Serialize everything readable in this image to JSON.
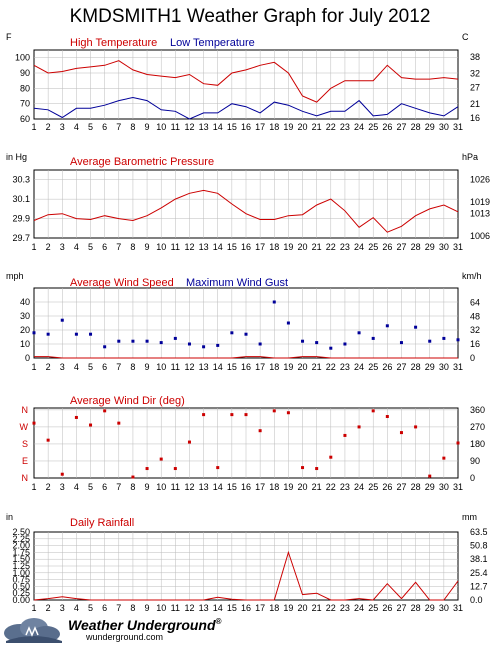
{
  "page": {
    "title": "KMDSMITH1 Weather Graph for July 2012"
  },
  "logo": {
    "name": "Weather Underground",
    "registered": "®",
    "url_text": "wunderground.com",
    "icon": "cloud-logo-icon"
  },
  "colors": {
    "primary": "#cc0000",
    "secondary": "#000099",
    "grid": "#bbbbbb"
  },
  "chart_data": [
    {
      "type": "line",
      "title": "",
      "left_unit": "F",
      "right_unit": "C",
      "x": [
        1,
        2,
        3,
        4,
        5,
        6,
        7,
        8,
        9,
        10,
        11,
        12,
        13,
        14,
        15,
        16,
        17,
        18,
        19,
        20,
        21,
        22,
        23,
        24,
        25,
        26,
        27,
        28,
        29,
        30,
        31
      ],
      "ylim": [
        60,
        105
      ],
      "y_ticks": [
        60,
        70,
        80,
        90,
        100
      ],
      "right_ticks": [
        {
          "value": 60.8,
          "label": "16"
        },
        {
          "value": 69.8,
          "label": "21"
        },
        {
          "value": 80.6,
          "label": "27"
        },
        {
          "value": 89.6,
          "label": "32"
        },
        {
          "value": 100.4,
          "label": "38"
        }
      ],
      "series": [
        {
          "name": "High Temperature",
          "values": [
            95,
            90,
            91,
            93,
            94,
            95,
            98,
            92,
            89,
            88,
            87,
            89,
            83,
            82,
            90,
            92,
            95,
            97,
            90,
            75,
            71,
            80,
            85,
            85,
            85,
            95,
            87,
            86,
            86,
            87,
            86
          ]
        },
        {
          "name": "Low Temperature",
          "values": [
            67,
            66,
            61,
            67,
            67,
            69,
            72,
            74,
            72,
            66,
            65,
            60,
            64,
            64,
            70,
            68,
            64,
            71,
            69,
            65,
            62,
            65,
            65,
            72,
            62,
            63,
            70,
            67,
            64,
            62,
            68
          ]
        }
      ]
    },
    {
      "type": "line",
      "title": "Average Barometric Pressure",
      "left_unit": "in Hg",
      "right_unit": "hPa",
      "x": [
        1,
        2,
        3,
        4,
        5,
        6,
        7,
        8,
        9,
        10,
        11,
        12,
        13,
        14,
        15,
        16,
        17,
        18,
        19,
        20,
        21,
        22,
        23,
        24,
        25,
        26,
        27,
        28,
        29,
        30,
        31
      ],
      "ylim": [
        29.7,
        30.4
      ],
      "y_ticks": [
        29.7,
        29.9,
        30.1,
        30.3
      ],
      "right_ticks": [
        {
          "value": 29.72,
          "label": "1006"
        },
        {
          "value": 29.95,
          "label": "1013"
        },
        {
          "value": 30.07,
          "label": "1019"
        },
        {
          "value": 30.3,
          "label": "1026"
        }
      ],
      "series": [
        {
          "name": "Average Barometric Pressure",
          "values": [
            29.88,
            29.94,
            29.95,
            29.9,
            29.89,
            29.93,
            29.9,
            29.88,
            29.93,
            30.01,
            30.1,
            30.16,
            30.19,
            30.16,
            30.05,
            29.95,
            29.89,
            29.89,
            29.93,
            29.94,
            30.04,
            30.1,
            29.98,
            29.81,
            29.91,
            29.76,
            29.82,
            29.93,
            30.0,
            30.04,
            29.97
          ]
        }
      ]
    },
    {
      "type": "scatter",
      "title": "",
      "left_unit": "mph",
      "right_unit": "km/h",
      "x": [
        1,
        2,
        3,
        4,
        5,
        6,
        7,
        8,
        9,
        10,
        11,
        12,
        13,
        14,
        15,
        16,
        17,
        18,
        19,
        20,
        21,
        22,
        23,
        24,
        25,
        26,
        27,
        28,
        29,
        30,
        31
      ],
      "ylim": [
        0,
        50
      ],
      "y_ticks": [
        0,
        10,
        20,
        30,
        40
      ],
      "right_ticks": [
        {
          "value": 0,
          "label": "0"
        },
        {
          "value": 9.9,
          "label": "16"
        },
        {
          "value": 19.9,
          "label": "32"
        },
        {
          "value": 29.8,
          "label": "48"
        },
        {
          "value": 39.8,
          "label": "64"
        }
      ],
      "series": [
        {
          "name": "Average Wind Speed",
          "values": [
            1,
            1,
            0,
            0,
            0,
            0,
            0,
            0,
            0,
            0,
            0,
            0,
            0,
            0,
            0,
            1,
            1,
            0,
            0,
            1,
            1,
            0,
            0,
            0,
            0,
            0,
            0,
            0,
            0,
            0,
            0
          ]
        },
        {
          "name": "Maximum Wind Gust",
          "values": [
            18,
            17,
            27,
            17,
            17,
            8,
            12,
            12,
            12,
            11,
            14,
            10,
            8,
            9,
            18,
            17,
            10,
            40,
            25,
            12,
            11,
            7,
            10,
            18,
            14,
            23,
            11,
            22,
            12,
            14,
            13
          ]
        }
      ]
    },
    {
      "type": "scatter",
      "title": "Average Wind Dir (deg)",
      "left_unit": "",
      "right_unit": "",
      "x": [
        1,
        2,
        3,
        4,
        5,
        6,
        7,
        8,
        9,
        10,
        11,
        12,
        13,
        14,
        15,
        16,
        17,
        18,
        19,
        20,
        21,
        22,
        23,
        24,
        25,
        26,
        27,
        28,
        29,
        30,
        31
      ],
      "ylim": [
        0,
        370
      ],
      "y_ticks": [
        0,
        90,
        180,
        270,
        360
      ],
      "left_ticks": [
        {
          "value": 0,
          "label": "N"
        },
        {
          "value": 90,
          "label": "E"
        },
        {
          "value": 180,
          "label": "S"
        },
        {
          "value": 270,
          "label": "W"
        },
        {
          "value": 360,
          "label": "N"
        }
      ],
      "right_ticks": [
        {
          "value": 0,
          "label": "0"
        },
        {
          "value": 90,
          "label": "90"
        },
        {
          "value": 180,
          "label": "180"
        },
        {
          "value": 270,
          "label": "270"
        },
        {
          "value": 360,
          "label": "360"
        }
      ],
      "series": [
        {
          "name": "Average Wind Dir (deg)",
          "values": [
            290,
            200,
            20,
            320,
            280,
            355,
            290,
            5,
            50,
            100,
            50,
            190,
            335,
            55,
            335,
            335,
            250,
            355,
            345,
            55,
            50,
            110,
            225,
            270,
            355,
            325,
            240,
            270,
            10,
            105,
            185
          ]
        }
      ]
    },
    {
      "type": "area",
      "title": "Daily Rainfall",
      "left_unit": "in",
      "right_unit": "mm",
      "x": [
        1,
        2,
        3,
        4,
        5,
        6,
        7,
        8,
        9,
        10,
        11,
        12,
        13,
        14,
        15,
        16,
        17,
        18,
        19,
        20,
        21,
        22,
        23,
        24,
        25,
        26,
        27,
        28,
        29,
        30,
        31
      ],
      "ylim": [
        0,
        2.5
      ],
      "y_ticks": [
        0,
        0.25,
        0.5,
        0.75,
        1.0,
        1.25,
        1.5,
        1.75,
        2.0,
        2.25,
        2.5
      ],
      "y_tick_labels": [
        "0.00",
        "0.25",
        "0.50",
        "0.75",
        "1.00",
        "1.25",
        "1.50",
        "1.75",
        "2.00",
        "2.25",
        "2.50"
      ],
      "right_ticks": [
        {
          "value": 0,
          "label": "0.0"
        },
        {
          "value": 0.5,
          "label": "12.7"
        },
        {
          "value": 1.0,
          "label": "25.4"
        },
        {
          "value": 1.5,
          "label": "38.1"
        },
        {
          "value": 2.0,
          "label": "50.8"
        },
        {
          "value": 2.5,
          "label": "63.5"
        }
      ],
      "series": [
        {
          "name": "Daily Rainfall",
          "values": [
            0,
            0.05,
            0.12,
            0.05,
            0,
            0,
            0,
            0,
            0,
            0,
            0,
            0,
            0,
            0.1,
            0.03,
            0,
            0,
            0,
            1.75,
            0.2,
            0.25,
            0,
            0,
            0.05,
            0,
            0.6,
            0.05,
            0.65,
            0,
            0,
            0.7
          ]
        }
      ]
    }
  ]
}
